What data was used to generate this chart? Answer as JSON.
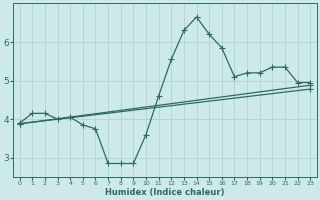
{
  "xlabel": "Humidex (Indice chaleur)",
  "bg_color": "#ceeae8",
  "grid_color": "#aed4d0",
  "line_color": "#2a6b62",
  "xlim": [
    -0.5,
    23.5
  ],
  "ylim": [
    2.5,
    7.0
  ],
  "yticks": [
    3,
    4,
    5,
    6
  ],
  "xticks": [
    0,
    1,
    2,
    3,
    4,
    5,
    6,
    7,
    8,
    9,
    10,
    11,
    12,
    13,
    14,
    15,
    16,
    17,
    18,
    19,
    20,
    21,
    22,
    23
  ],
  "line1_x": [
    0,
    1,
    2,
    3,
    4,
    5,
    6,
    7,
    8,
    9,
    10,
    11,
    12,
    13,
    14,
    15,
    16,
    17,
    18,
    19,
    20,
    21,
    22,
    23
  ],
  "line1_y": [
    3.9,
    4.15,
    4.15,
    4.0,
    4.05,
    3.85,
    3.75,
    2.85,
    2.85,
    2.85,
    3.6,
    4.6,
    5.55,
    6.3,
    6.65,
    6.2,
    5.85,
    5.1,
    5.2,
    5.2,
    5.35,
    5.35,
    4.95,
    4.95
  ],
  "line2_x": [
    0,
    23
  ],
  "line2_y": [
    3.88,
    4.88
  ],
  "line3_x": [
    0,
    23
  ],
  "line3_y": [
    3.88,
    4.78
  ]
}
